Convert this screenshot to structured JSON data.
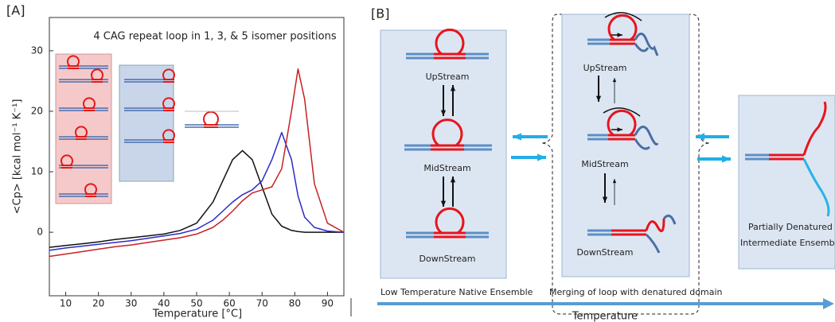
{
  "chart_data": {
    "type": "line",
    "panel_label": "[A]",
    "annotation": "4 CAG repeat loop in 1, 3, & 5 isomer positions",
    "x_label": "Temperature [°C]",
    "y_label": "<Cp> [kcal mol⁻¹ K⁻¹]",
    "x": [
      5,
      10,
      15,
      20,
      25,
      30,
      35,
      40,
      45,
      50,
      55,
      58,
      61,
      64,
      67,
      70,
      73,
      76,
      79,
      81,
      83,
      86,
      90,
      95
    ],
    "series": [
      {
        "color": "#111111",
        "values": [
          -2.5,
          -2.2,
          -1.9,
          -1.6,
          -1.2,
          -0.9,
          -0.6,
          -0.3,
          0.3,
          1.5,
          5,
          8.5,
          12,
          13.5,
          12,
          7.5,
          3,
          1,
          0.3,
          0.1,
          0,
          0,
          0,
          0
        ]
      },
      {
        "color": "#2b2bc8",
        "values": [
          -3,
          -2.6,
          -2.3,
          -2,
          -1.7,
          -1.4,
          -1,
          -0.6,
          -0.2,
          0.5,
          2,
          3.5,
          5,
          6.2,
          7,
          8.5,
          12,
          16.5,
          12,
          6,
          2.5,
          0.8,
          0.2,
          0
        ]
      },
      {
        "color": "#c82020",
        "values": [
          -4,
          -3.6,
          -3.2,
          -2.8,
          -2.4,
          -2.1,
          -1.7,
          -1.3,
          -0.9,
          -0.3,
          0.8,
          2,
          3.5,
          5.2,
          6.5,
          7,
          7.5,
          10.5,
          20,
          27,
          22,
          8,
          1.5,
          0
        ]
      }
    ],
    "xlim": [
      5,
      95
    ],
    "xticks": [
      10,
      20,
      30,
      40,
      50,
      60,
      70,
      80,
      90
    ],
    "ylim": [
      -10.5,
      35.5
    ],
    "yticks": [
      0,
      10,
      20,
      30
    ]
  },
  "diagram": {
    "panel_label": "[B]",
    "native": {
      "states": [
        "UpStream",
        "MidStream",
        "DownStream"
      ],
      "caption": "Low Temperature Native Ensemble"
    },
    "merging": {
      "states": [
        "UpStream",
        "MidStream",
        "DownStream"
      ],
      "caption": "Merging of loop with denatured domain"
    },
    "denatured": {
      "caption_lines": [
        "Partially Denatured",
        "Intermediate Ensembl"
      ]
    },
    "axis_label": "Temperature"
  }
}
